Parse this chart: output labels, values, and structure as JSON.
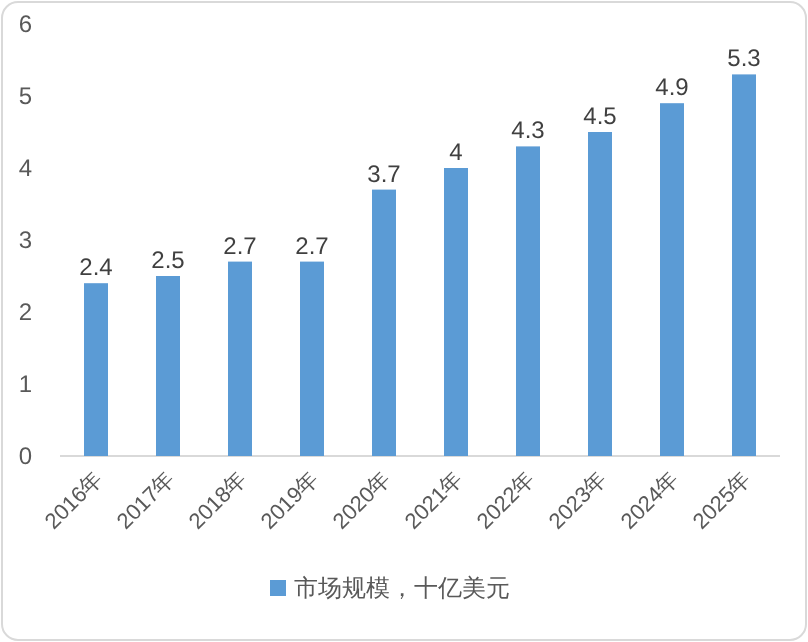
{
  "chart_data": {
    "type": "bar",
    "categories": [
      "2016年",
      "2017年",
      "2018年",
      "2019年",
      "2020年",
      "2021年",
      "2022年",
      "2023年",
      "2024年",
      "2025年"
    ],
    "series": [
      {
        "name": "市场规模，十亿美元",
        "color": "#5b9bd5",
        "values": [
          2.4,
          2.5,
          2.7,
          2.7,
          3.7,
          4,
          4.3,
          4.5,
          4.9,
          5.3
        ]
      }
    ],
    "ylim": [
      0,
      6
    ],
    "yticks": [
      0,
      1,
      2,
      3,
      4,
      5,
      6
    ],
    "data_labels": true,
    "legend": "bottom"
  }
}
